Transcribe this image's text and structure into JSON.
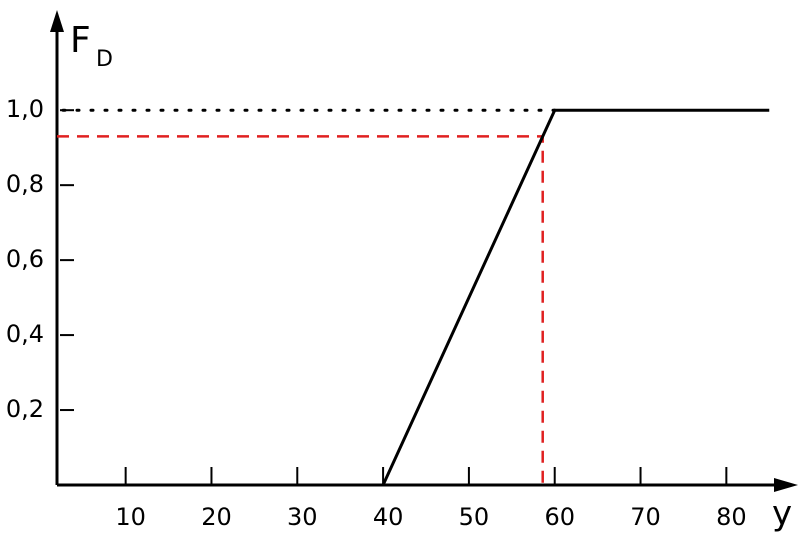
{
  "chart_data": {
    "type": "line",
    "ylabel": "F",
    "ylabel_sub": "D",
    "xlabel": "y",
    "x": [
      40,
      60,
      85
    ],
    "series": [
      {
        "values": [
          0,
          1,
          1
        ],
        "color": "#000000"
      }
    ],
    "xlim": [
      2,
      88
    ],
    "ylim": [
      0,
      1.27
    ],
    "xticks": [
      10,
      20,
      30,
      40,
      50,
      60,
      70,
      80
    ],
    "yticks": [
      {
        "value": 0.2,
        "label": "0,2"
      },
      {
        "value": 0.4,
        "label": "0,4"
      },
      {
        "value": 0.6,
        "label": "0,6"
      },
      {
        "value": 0.8,
        "label": "0,8"
      },
      {
        "value": 1.0,
        "label": "1,0"
      }
    ],
    "reference": {
      "x": 58.6,
      "y": 0.93,
      "color": "#e02020"
    }
  }
}
